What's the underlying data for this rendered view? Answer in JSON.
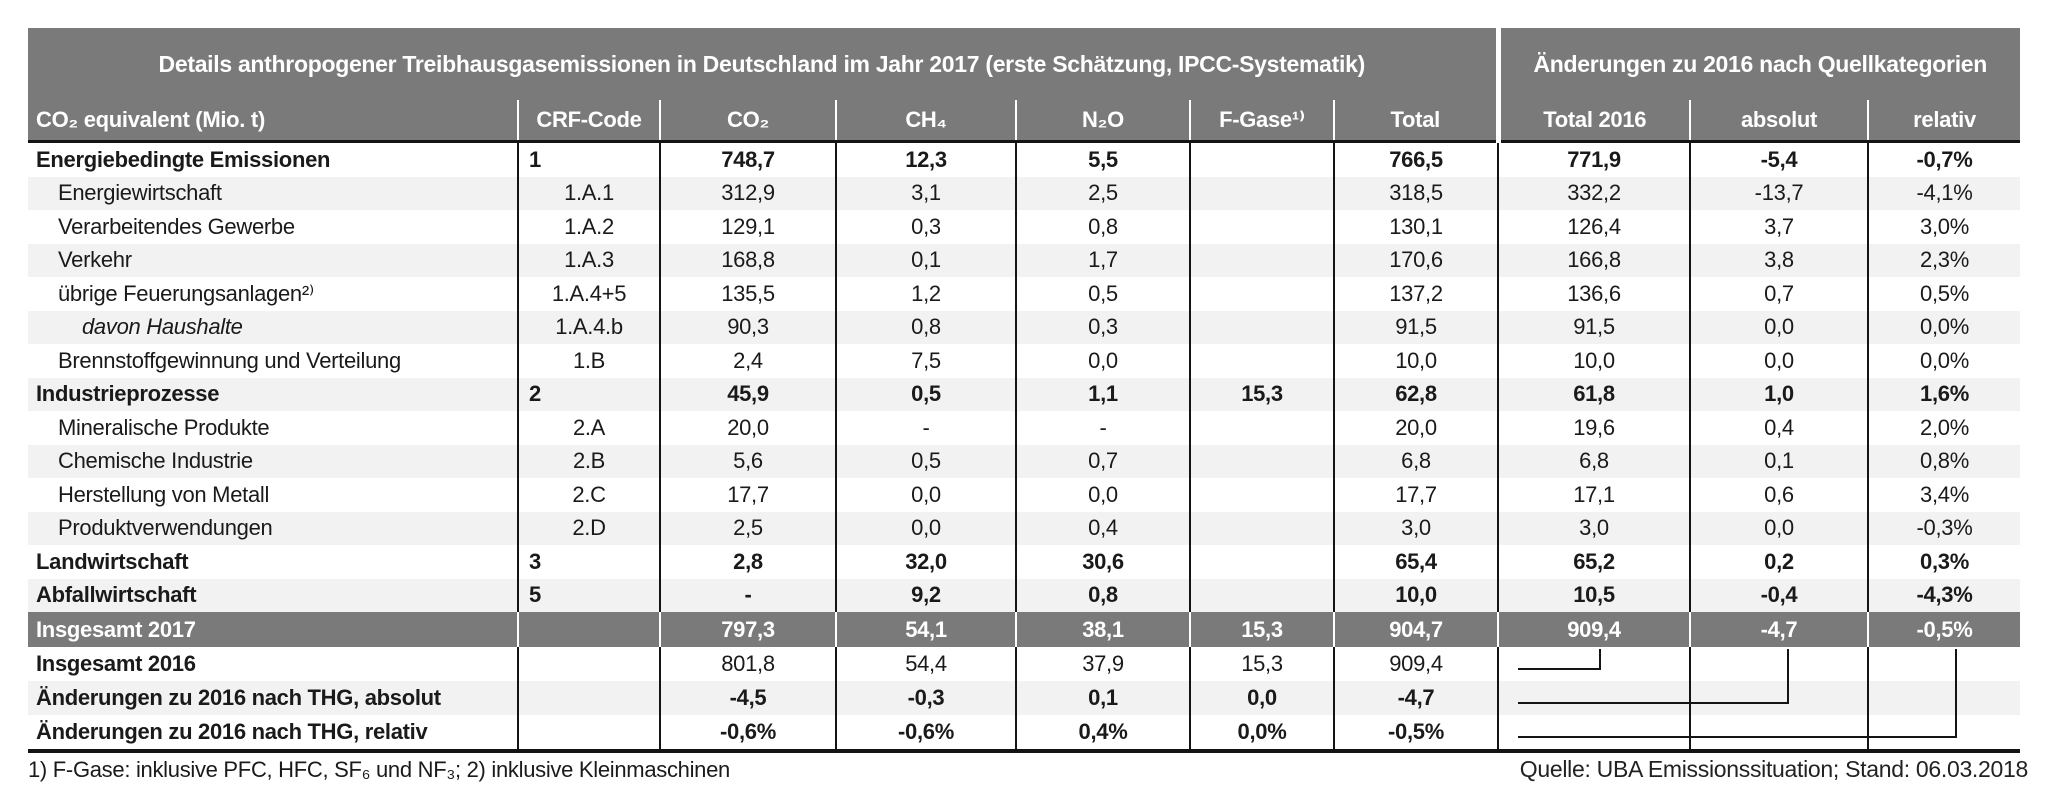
{
  "colors": {
    "header_bg": "#7a7a7a",
    "stripe": "#f2f2f2",
    "text": "#1a1a1a",
    "header_text": "#ffffff"
  },
  "chart_data": {
    "type": "table",
    "title": "Details anthropogener Treibhausgasemissionen in Deutschland im Jahr 2017 (erste Schätzung, IPCC-Systematik)",
    "section2_title": "Änderungen zu 2016 nach Quellkategorien",
    "columns": [
      "CO₂ equivalent (Mio. t)",
      "CRF-Code",
      "CO₂",
      "CH₄",
      "N₂O",
      "F-Gase¹⁾",
      "Total",
      "Total 2016",
      "absolut",
      "relativ"
    ],
    "rows": [
      {
        "label": "Energiebedingte Emissionen",
        "crf": "1",
        "cls": "main",
        "shaded": false,
        "values": [
          "748,7",
          "12,3",
          "5,5",
          "",
          "766,5",
          "771,9",
          "-5,4",
          "-0,7%"
        ]
      },
      {
        "label": "Energiewirtschaft",
        "crf": "1.A.1",
        "cls": "sub",
        "shaded": true,
        "values": [
          "312,9",
          "3,1",
          "2,5",
          "",
          "318,5",
          "332,2",
          "-13,7",
          "-4,1%"
        ]
      },
      {
        "label": "Verarbeitendes Gewerbe",
        "crf": "1.A.2",
        "cls": "sub",
        "shaded": false,
        "values": [
          "129,1",
          "0,3",
          "0,8",
          "",
          "130,1",
          "126,4",
          "3,7",
          "3,0%"
        ]
      },
      {
        "label": "Verkehr",
        "crf": "1.A.3",
        "cls": "sub",
        "shaded": true,
        "values": [
          "168,8",
          "0,1",
          "1,7",
          "",
          "170,6",
          "166,8",
          "3,8",
          "2,3%"
        ]
      },
      {
        "label": "übrige Feuerungsanlagen²⁾",
        "crf": "1.A.4+5",
        "cls": "sub",
        "shaded": false,
        "values": [
          "135,5",
          "1,2",
          "0,5",
          "",
          "137,2",
          "136,6",
          "0,7",
          "0,5%"
        ]
      },
      {
        "label": "davon Haushalte",
        "crf": "1.A.4.b",
        "cls": "subsub",
        "shaded": true,
        "values": [
          "90,3",
          "0,8",
          "0,3",
          "",
          "91,5",
          "91,5",
          "0,0",
          "0,0%"
        ]
      },
      {
        "label": "Brennstoffgewinnung und Verteilung",
        "crf": "1.B",
        "cls": "sub",
        "shaded": false,
        "values": [
          "2,4",
          "7,5",
          "0,0",
          "",
          "10,0",
          "10,0",
          "0,0",
          "0,0%"
        ]
      },
      {
        "label": "Industrieprozesse",
        "crf": "2",
        "cls": "main",
        "shaded": true,
        "values": [
          "45,9",
          "0,5",
          "1,1",
          "15,3",
          "62,8",
          "61,8",
          "1,0",
          "1,6%"
        ]
      },
      {
        "label": "Mineralische Produkte",
        "crf": "2.A",
        "cls": "sub",
        "shaded": false,
        "values": [
          "20,0",
          "-",
          "-",
          "",
          "20,0",
          "19,6",
          "0,4",
          "2,0%"
        ]
      },
      {
        "label": "Chemische Industrie",
        "crf": "2.B",
        "cls": "sub",
        "shaded": true,
        "values": [
          "5,6",
          "0,5",
          "0,7",
          "",
          "6,8",
          "6,8",
          "0,1",
          "0,8%"
        ]
      },
      {
        "label": "Herstellung von Metall",
        "crf": "2.C",
        "cls": "sub",
        "shaded": false,
        "values": [
          "17,7",
          "0,0",
          "0,0",
          "",
          "17,7",
          "17,1",
          "0,6",
          "3,4%"
        ]
      },
      {
        "label": "Produktverwendungen",
        "crf": "2.D",
        "cls": "sub",
        "shaded": true,
        "values": [
          "2,5",
          "0,0",
          "0,4",
          "",
          "3,0",
          "3,0",
          "0,0",
          "-0,3%"
        ]
      },
      {
        "label": "Landwirtschaft",
        "crf": "3",
        "cls": "main",
        "shaded": false,
        "values": [
          "2,8",
          "32,0",
          "30,6",
          "",
          "65,4",
          "65,2",
          "0,2",
          "0,3%"
        ]
      },
      {
        "label": "Abfallwirtschaft",
        "crf": "5",
        "cls": "main",
        "shaded": true,
        "values": [
          "-",
          "9,2",
          "0,8",
          "",
          "10,0",
          "10,5",
          "-0,4",
          "-4,3%"
        ]
      },
      {
        "label": "Insgesamt 2017",
        "crf": "",
        "cls": "grand",
        "shaded": false,
        "values": [
          "797,3",
          "54,1",
          "38,1",
          "15,3",
          "904,7",
          "909,4",
          "-4,7",
          "-0,5%"
        ]
      },
      {
        "label": "Insgesamt 2016",
        "crf": "",
        "cls": "total16",
        "shaded": false,
        "values": [
          "801,8",
          "54,4",
          "37,9",
          "15,3",
          "909,4",
          "",
          "",
          ""
        ]
      },
      {
        "label": "Änderungen zu 2016 nach THG, absolut",
        "crf": "",
        "cls": "delta",
        "shaded": true,
        "values": [
          "-4,5",
          "-0,3",
          "0,1",
          "0,0",
          "-4,7",
          "",
          "",
          ""
        ]
      },
      {
        "label": "Änderungen zu 2016 nach THG, relativ",
        "crf": "",
        "cls": "delta",
        "shaded": false,
        "values": [
          "-0,6%",
          "-0,6%",
          "0,4%",
          "0,0%",
          "-0,5%",
          "",
          "",
          ""
        ]
      }
    ],
    "footnote": "1) F-Gase: inklusive PFC, HFC, SF₆ und NF₃; 2) inklusive Kleinmaschinen",
    "source": "Quelle: UBA Emissionssituation; Stand: 06.03.2018"
  }
}
